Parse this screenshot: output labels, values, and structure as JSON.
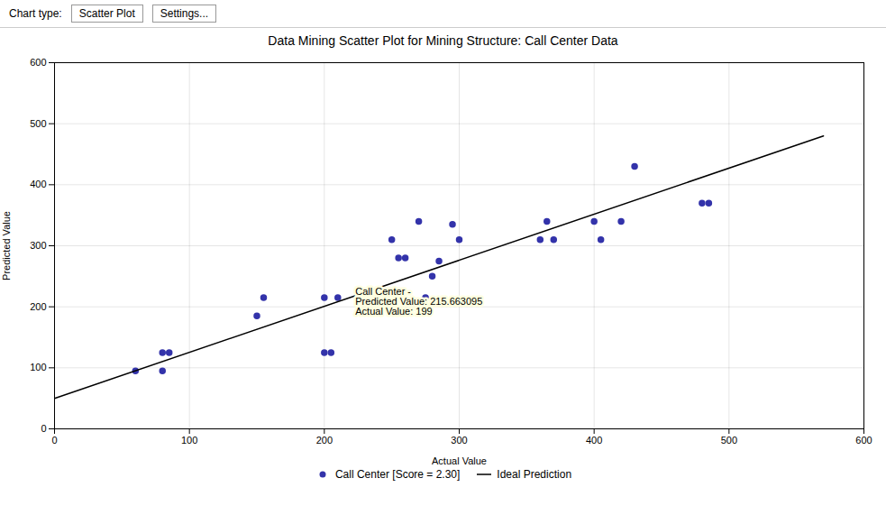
{
  "chart_data": {
    "type": "scatter",
    "title": "Data Mining Scatter Plot for Mining Structure: Call Center Data",
    "x_label": "Actual Value",
    "y_label": "Predicted Value",
    "xlim": [
      0,
      600
    ],
    "ylim": [
      0,
      600
    ],
    "xticks": [
      0,
      100,
      200,
      300,
      400,
      500,
      600
    ],
    "yticks": [
      0,
      100,
      200,
      300,
      400,
      500,
      600
    ],
    "grid": true,
    "legend": "bottom",
    "annotations": [
      "Chart type:",
      "Scatter Plot",
      "Settings...",
      "Call Center -\nPredicted Value: 215.663095\nActual Value: 199"
    ],
    "series": [
      {
        "name": "Call Center [Score = 2.30]",
        "type": "scatter",
        "color": "#3333aa",
        "marker": "circle",
        "x": [
          60,
          80,
          85,
          80,
          150,
          155,
          200,
          200,
          205,
          210,
          250,
          255,
          260,
          270,
          275,
          280,
          285,
          295,
          300,
          360,
          365,
          370,
          400,
          405,
          420,
          430,
          480,
          485
        ],
        "values": [
          95,
          95,
          125,
          125,
          185,
          215,
          215,
          125,
          125,
          215,
          310,
          280,
          280,
          340,
          215,
          250,
          275,
          335,
          310,
          310,
          340,
          310,
          340,
          310,
          340,
          430,
          370,
          370
        ]
      },
      {
        "name": "Ideal Prediction",
        "type": "line",
        "color": "black",
        "line_style": "solid",
        "x": [
          0,
          570
        ],
        "values": [
          50,
          480
        ]
      }
    ]
  }
}
